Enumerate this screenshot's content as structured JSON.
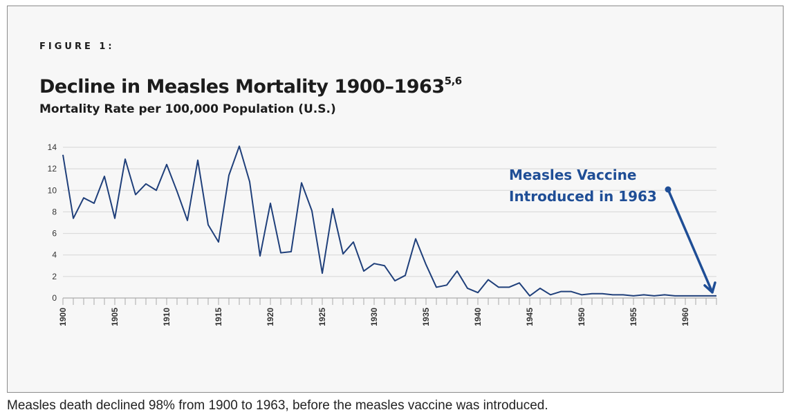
{
  "figure": {
    "label": "FIGURE 1:",
    "title": "Decline in Measles Mortality 1900–1963",
    "title_superscript": "5,6",
    "subtitle": "Mortality Rate per 100,000 Population (U.S.)"
  },
  "caption": "Measles death declined 98% from 1900 to 1963, before the measles vaccine was introduced.",
  "chart_data": {
    "type": "line",
    "title": "Decline in Measles Mortality 1900–1963",
    "ylabel": "Mortality Rate per 100,000 Population (U.S.)",
    "xlabel": "",
    "xlim": [
      1900,
      1963
    ],
    "ylim": [
      0,
      14
    ],
    "y_ticks": [
      0,
      2,
      4,
      6,
      8,
      10,
      12,
      14
    ],
    "x_tick_labels": [
      "1900",
      "1905",
      "1910",
      "1915",
      "1920",
      "1925",
      "1930",
      "1935",
      "1940",
      "1945",
      "1950",
      "1955",
      "1960"
    ],
    "grid": true,
    "line_color": "#1f3f7a",
    "accent_color": "#1f4e96",
    "x": [
      1900,
      1901,
      1902,
      1903,
      1904,
      1905,
      1906,
      1907,
      1908,
      1909,
      1910,
      1911,
      1912,
      1913,
      1914,
      1915,
      1916,
      1917,
      1918,
      1919,
      1920,
      1921,
      1922,
      1923,
      1924,
      1925,
      1926,
      1927,
      1928,
      1929,
      1930,
      1931,
      1932,
      1933,
      1934,
      1935,
      1936,
      1937,
      1938,
      1939,
      1940,
      1941,
      1942,
      1943,
      1944,
      1945,
      1946,
      1947,
      1948,
      1949,
      1950,
      1951,
      1952,
      1953,
      1954,
      1955,
      1956,
      1957,
      1958,
      1959,
      1960,
      1961,
      1962,
      1963
    ],
    "values": [
      13.3,
      7.4,
      9.3,
      8.8,
      11.3,
      7.4,
      12.9,
      9.6,
      10.6,
      10.0,
      12.4,
      9.9,
      7.2,
      12.8,
      6.8,
      5.2,
      11.4,
      14.1,
      10.8,
      3.9,
      8.8,
      4.2,
      4.3,
      10.7,
      8.1,
      2.3,
      8.3,
      4.1,
      5.2,
      2.5,
      3.2,
      3.0,
      1.6,
      2.1,
      5.5,
      3.1,
      1.0,
      1.2,
      2.5,
      0.9,
      0.5,
      1.7,
      1.0,
      1.0,
      1.4,
      0.2,
      0.9,
      0.3,
      0.6,
      0.6,
      0.3,
      0.4,
      0.4,
      0.3,
      0.3,
      0.2,
      0.3,
      0.2,
      0.3,
      0.2,
      0.2,
      0.2,
      0.2,
      0.2
    ],
    "annotation": {
      "line1": "Measles Vaccine",
      "line2": "Introduced in 1963",
      "points_to_year": 1963
    }
  }
}
